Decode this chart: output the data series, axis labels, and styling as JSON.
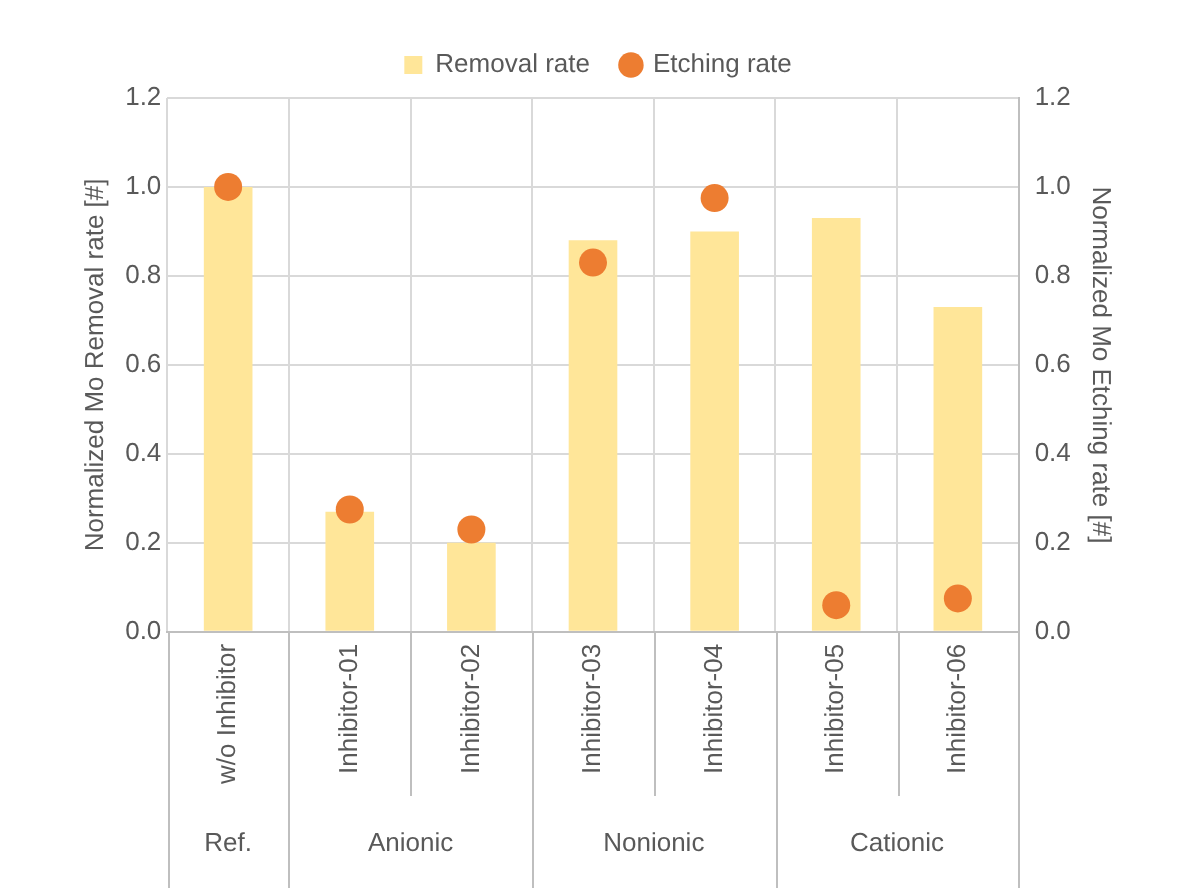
{
  "chart_data": {
    "type": "bar",
    "ylabel": "Normalized Mo Removal rate [#]",
    "y2label": "Normalized Mo Etching rate [#]",
    "categories": [
      "w/o Inhibitor",
      "Inhibitor-01",
      "Inhibitor-02",
      "Inhibitor-03",
      "Inhibitor-04",
      "Inhibitor-05",
      "Inhibitor-06"
    ],
    "series": [
      {
        "name": "Removal rate",
        "type": "bar",
        "color": "#ffe699",
        "values": [
          1.0,
          0.27,
          0.2,
          0.88,
          0.9,
          0.93,
          0.73
        ]
      },
      {
        "name": "Etching rate",
        "type": "scatter",
        "axis": "y2",
        "color": "#ed7d31",
        "values": [
          1.0,
          0.275,
          0.23,
          0.83,
          0.975,
          0.06,
          0.075
        ]
      }
    ],
    "ylim": [
      0,
      1.2
    ],
    "yticks": [
      {
        "value": 0,
        "label": "0.0"
      },
      {
        "value": 0.2,
        "label": "0.2"
      },
      {
        "value": 0.4,
        "label": "0.4"
      },
      {
        "value": 0.6,
        "label": "0.6"
      },
      {
        "value": 0.8,
        "label": "0.8"
      },
      {
        "value": 1,
        "label": "1.0"
      },
      {
        "value": 1.2,
        "label": "1.2"
      }
    ],
    "y2lim": [
      0,
      1.2
    ],
    "y2ticks": [
      {
        "value": 0,
        "label": "0.0"
      },
      {
        "value": 0.2,
        "label": "0.2"
      },
      {
        "value": 0.4,
        "label": "0.4"
      },
      {
        "value": 0.6,
        "label": "0.6"
      },
      {
        "value": 0.8,
        "label": "0.8"
      },
      {
        "value": 1,
        "label": "1.0"
      },
      {
        "value": 1.2,
        "label": "1.2"
      }
    ],
    "annotations": [
      "Ref.",
      "Anionic",
      "Nonionic",
      "Cationic"
    ],
    "grid": true,
    "legend": "top",
    "marker": "circle"
  }
}
